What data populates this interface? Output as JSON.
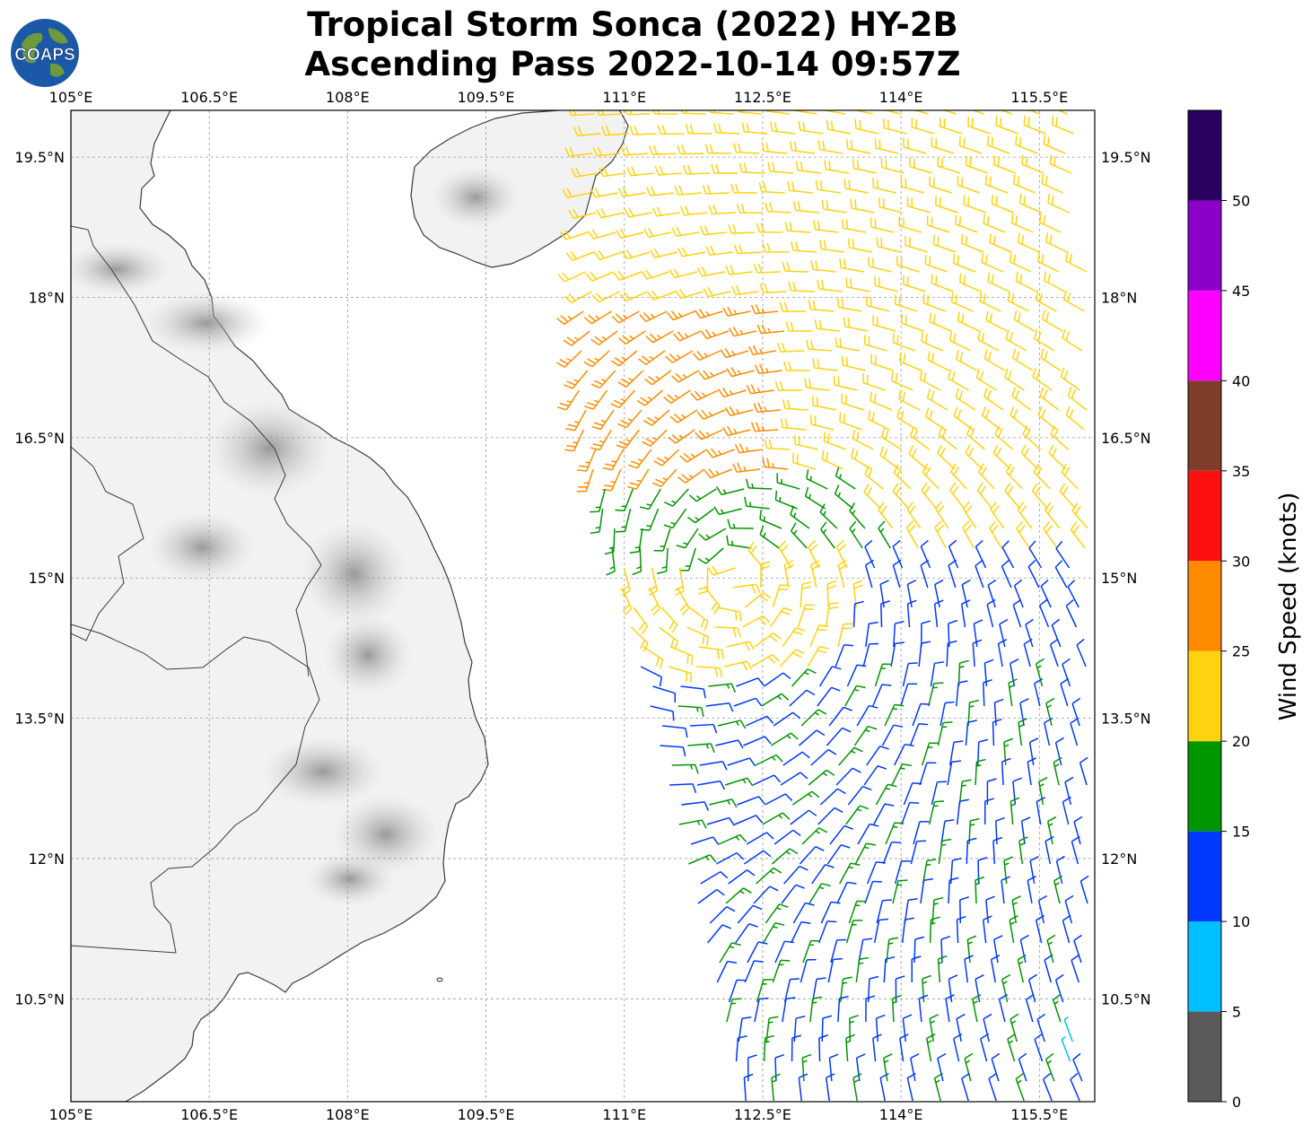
{
  "title": {
    "line1": "Tropical Storm Sonca (2022) HY-2B",
    "line2": "Ascending Pass 2022-10-14 09:57Z"
  },
  "logo": {
    "text": "COAPS",
    "icon": "globe-logo-icon"
  },
  "map": {
    "lon_range": [
      105.0,
      116.1
    ],
    "lat_range": [
      9.4,
      20.0
    ],
    "lon_ticks": [
      "105°E",
      "106.5°E",
      "108°E",
      "109.5°E",
      "111°E",
      "112.5°E",
      "114°E",
      "115.5°E"
    ],
    "lat_ticks": [
      "19.5°N",
      "18°N",
      "16.5°N",
      "15°N",
      "13.5°N",
      "12°N",
      "10.5°N"
    ],
    "gridlines": true,
    "land_shading": "grayscale terrain",
    "swath": {
      "lon_west_edge": [
        110.5,
        112.5
      ],
      "lon_east_edge": 116.1,
      "lat_range": [
        9.4,
        20.0
      ]
    },
    "storm_center_approx": {
      "lon": 112.2,
      "lat": 15.0
    }
  },
  "colorbar": {
    "label": "Wind Speed (knots)",
    "ticks": [
      "0",
      "5",
      "10",
      "15",
      "20",
      "25",
      "30",
      "35",
      "40",
      "45",
      "50"
    ],
    "bins": [
      {
        "min": 0,
        "max": 5,
        "color": "#5a5a5a"
      },
      {
        "min": 5,
        "max": 10,
        "color": "#00bfff"
      },
      {
        "min": 10,
        "max": 15,
        "color": "#0038ff"
      },
      {
        "min": 15,
        "max": 20,
        "color": "#009600"
      },
      {
        "min": 20,
        "max": 25,
        "color": "#ffd20f"
      },
      {
        "min": 25,
        "max": 30,
        "color": "#ff8c00"
      },
      {
        "min": 30,
        "max": 35,
        "color": "#ff1010"
      },
      {
        "min": 35,
        "max": 40,
        "color": "#7f3d2a"
      },
      {
        "min": 40,
        "max": 45,
        "color": "#ff00ff"
      },
      {
        "min": 45,
        "max": 50,
        "color": "#8c00c8"
      },
      {
        "min": 50,
        "max": 55,
        "color": "#2a0060"
      }
    ]
  }
}
